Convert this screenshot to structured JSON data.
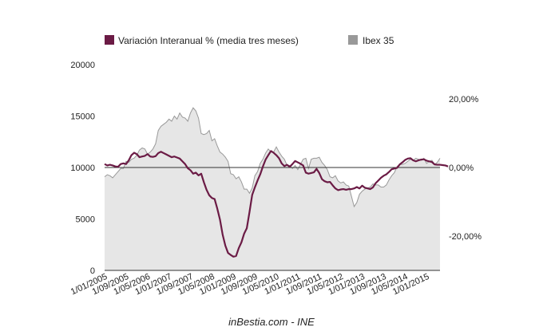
{
  "chart_data": {
    "type": "line",
    "legend": {
      "placement": "top",
      "items": [
        {
          "label": "Variación Interanual % (media tres meses)",
          "color": "#6b1b45"
        },
        {
          "label": "Ibex 35",
          "color": "#999999"
        }
      ]
    },
    "source": "inBestia.com - INE",
    "y_left": {
      "min": 0,
      "max": 20000,
      "ticks": [
        "0",
        "5000",
        "10000",
        "15000",
        "20000"
      ]
    },
    "y_right": {
      "min": -30,
      "max": 30,
      "ticks": [
        {
          "value": 20,
          "label": "20,00%"
        },
        {
          "value": 0,
          "label": "0,00%"
        },
        {
          "value": -20,
          "label": "-20,00%"
        }
      ]
    },
    "x_labels": [
      "1/01/2005",
      "1/09/2005",
      "1/05/2006",
      "1/01/2007",
      "1/09/2007",
      "1/05/2008",
      "1/01/2009",
      "1/09/2009",
      "1/05/2010",
      "1/01/2011",
      "1/09/2011",
      "1/05/2012",
      "1/01/2013",
      "1/09/2013",
      "1/05/2014",
      "1/01/2015"
    ],
    "x_range": [
      0,
      125
    ],
    "x_label_step": 8,
    "series": [
      {
        "name": "Ibex 35",
        "kind": "area",
        "axis": "left",
        "color": "#999999",
        "fill": "#e6e6e6",
        "values": [
          9100,
          9300,
          9200,
          9000,
          9300,
          9600,
          9900,
          9900,
          10600,
          10500,
          10800,
          10900,
          11200,
          11700,
          11900,
          11800,
          11300,
          11500,
          11800,
          12300,
          13600,
          14000,
          14200,
          14400,
          14700,
          14500,
          15000,
          14700,
          15300,
          14900,
          14800,
          14500,
          15300,
          15800,
          15500,
          14800,
          13300,
          13200,
          13300,
          13600,
          12600,
          12800,
          12100,
          11500,
          11300,
          11000,
          10600,
          9400,
          9300,
          8900,
          9100,
          8600,
          7900,
          7900,
          7500,
          8000,
          9200,
          9600,
          10400,
          10800,
          11400,
          11800,
          11500,
          11500,
          12000,
          11500,
          11100,
          10800,
          10200,
          10200,
          9900,
          10200,
          9800,
          10300,
          10800,
          10900,
          9900,
          10800,
          10900,
          10900,
          11000,
          10500,
          10200,
          9800,
          9100,
          9000,
          9200,
          8700,
          8500,
          8600,
          8300,
          8200,
          7200,
          6200,
          6600,
          7400,
          7700,
          7900,
          8000,
          8100,
          8400,
          8300,
          8300,
          8100,
          8100,
          8300,
          8800,
          9200,
          9500,
          10100,
          10300,
          10300,
          10400,
          10600,
          10800,
          10700,
          10900,
          10800,
          10700,
          10900,
          10400,
          10600,
          10700,
          10300,
          10500,
          10900
        ]
      },
      {
        "name": "Variación Interanual % (media tres meses)",
        "kind": "line",
        "axis": "right",
        "color": "#6b1b45",
        "values": [
          1,
          0.6,
          0.8,
          0.6,
          0.3,
          0.2,
          1,
          1.2,
          1,
          2.1,
          3.6,
          4.3,
          3.9,
          3,
          3.2,
          3.4,
          3.9,
          3.2,
          3.1,
          3.3,
          4.2,
          4.6,
          4.2,
          3.8,
          3.4,
          3,
          3.2,
          2.9,
          2.6,
          1.8,
          1,
          -0.2,
          -0.8,
          -1.8,
          -1.5,
          -2.3,
          -1.8,
          -4.3,
          -6.5,
          -8.1,
          -8.9,
          -9.2,
          -12,
          -15.2,
          -19.6,
          -22.8,
          -24.9,
          -25.5,
          -26,
          -25.8,
          -23.5,
          -21.8,
          -19.3,
          -17.7,
          -13,
          -8,
          -5.8,
          -3.8,
          -2,
          0.3,
          2.3,
          3.6,
          4.8,
          4.3,
          3.6,
          2.7,
          1.2,
          0.4,
          0.8,
          0.2,
          1,
          1.9,
          1.5,
          1.1,
          0.6,
          -1.5,
          -1.8,
          -1.6,
          -1.4,
          -0.4,
          -1.6,
          -3.4,
          -4,
          -4.3,
          -4.2,
          -5.2,
          -6.1,
          -6.6,
          -6.4,
          -6.3,
          -6.5,
          -6.3,
          -6.3,
          -6.1,
          -5.7,
          -6.1,
          -5.3,
          -5.9,
          -6.1,
          -6.3,
          -5.8,
          -4.6,
          -3.8,
          -3,
          -2.4,
          -2,
          -1.3,
          -0.5,
          -0.3,
          -0.1,
          0.9,
          1.5,
          2.2,
          2.6,
          2.7,
          2.1,
          1.8,
          2.1,
          2.3,
          2.4,
          2,
          1.8,
          1.6,
          0.9,
          0.8,
          0.8,
          0.7,
          0.6,
          0.3
        ]
      }
    ],
    "zero_line": true,
    "grid": false
  }
}
